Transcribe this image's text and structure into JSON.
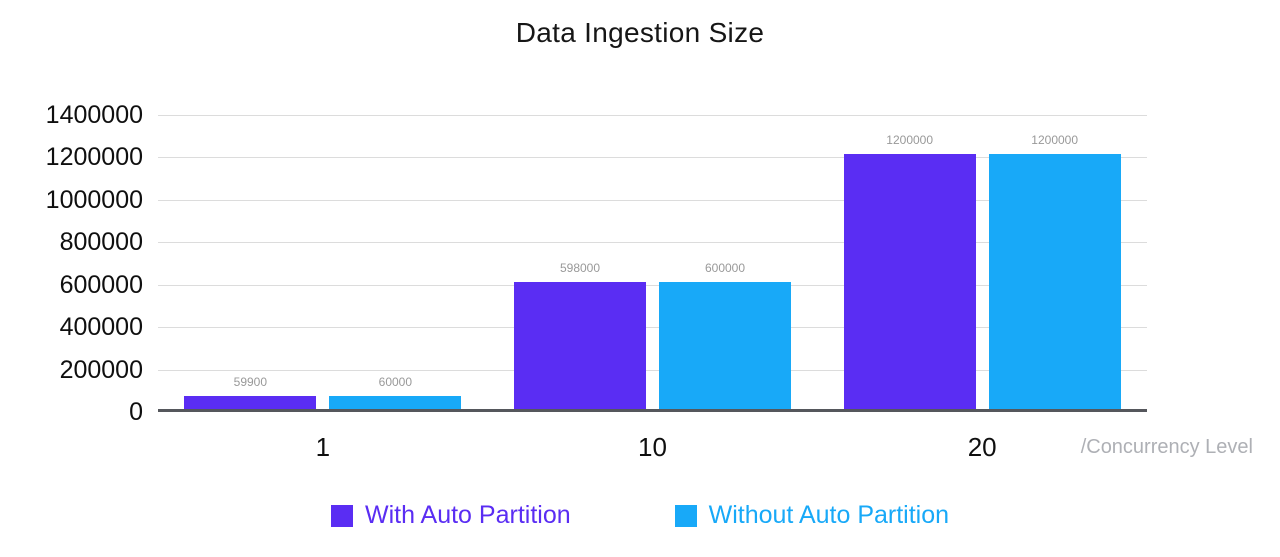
{
  "chart_data": {
    "type": "bar",
    "title": "Data Ingestion Size",
    "categories": [
      "1",
      "10",
      "20"
    ],
    "series": [
      {
        "name": "With Auto Partition",
        "color": "#5a2df3",
        "values": [
          59900,
          598000,
          1200000
        ]
      },
      {
        "name": "Without Auto Partition",
        "color": "#18a9f8",
        "values": [
          60000,
          600000,
          1200000
        ]
      }
    ],
    "xlabel": "/Concurrency Level",
    "ylabel": "",
    "ylim": [
      0,
      1400000
    ],
    "yticks": [
      0,
      200000,
      400000,
      600000,
      800000,
      1000000,
      1200000,
      1400000
    ],
    "grid": true,
    "legend_position": "bottom",
    "value_labels_shown": true
  },
  "colors": {
    "background": "#ffffff",
    "grid": "#dcdcdc",
    "axis_line": "#55575c",
    "axis_text": "#0f0f0f",
    "value_label_text": "#999999",
    "x_unit_text": "#aeb0b5"
  }
}
